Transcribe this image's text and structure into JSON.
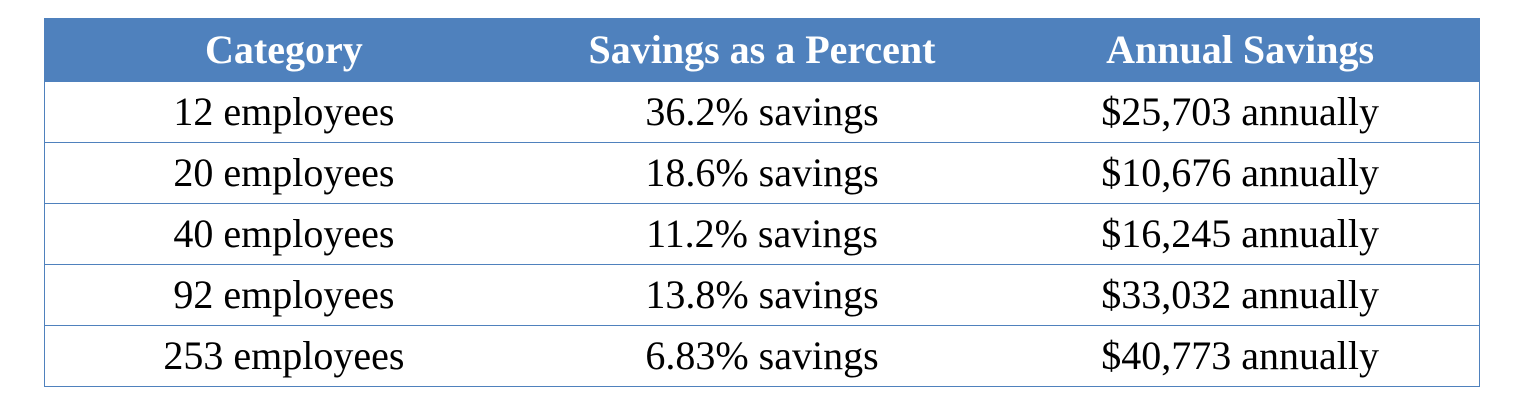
{
  "table": {
    "columns": [
      "Category",
      "Savings as a Percent",
      "Annual Savings"
    ],
    "rows": [
      [
        "12 employees",
        "36.2% savings",
        "$25,703 annually"
      ],
      [
        "20 employees",
        "18.6% savings",
        "$10,676 annually"
      ],
      [
        "40 employees",
        "11.2% savings",
        "$16,245 annually"
      ],
      [
        "92 employees",
        "13.8% savings",
        "$33,032 annually"
      ],
      [
        "253 employees",
        "6.83% savings",
        "$40,773 annually"
      ]
    ]
  }
}
